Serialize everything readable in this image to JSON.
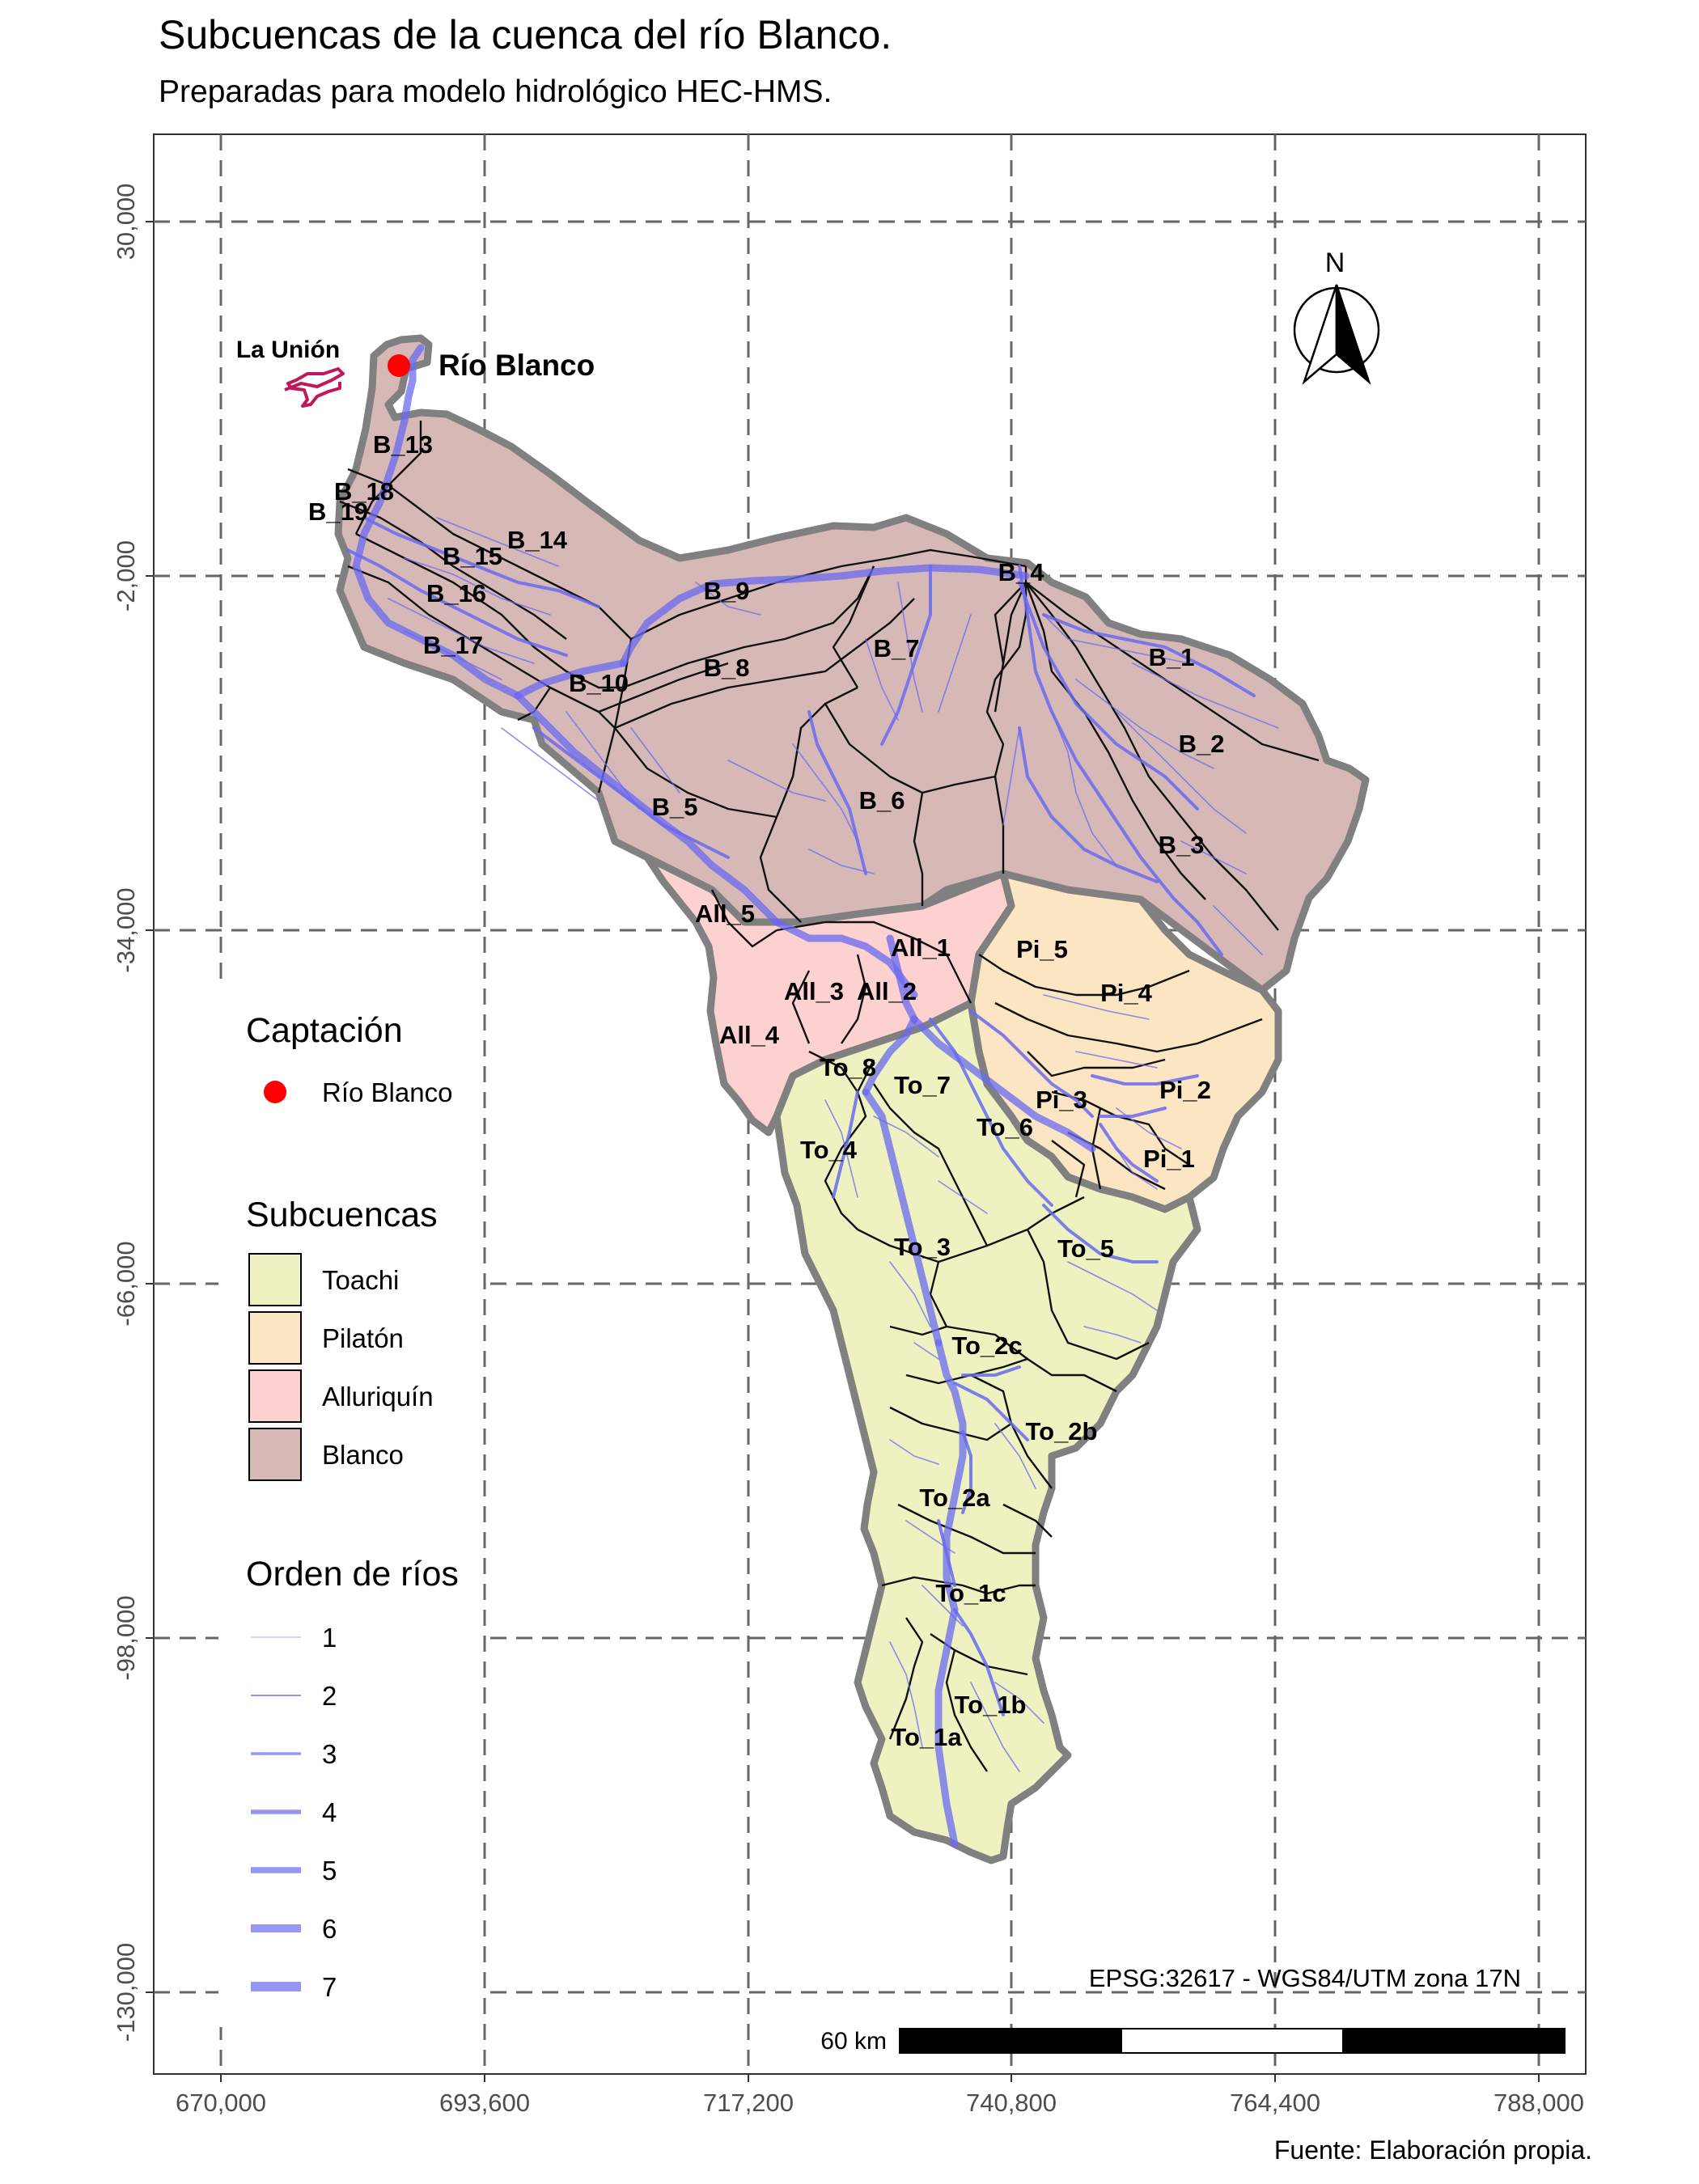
{
  "title": "Subcuencas de la cuenca del río Blanco.",
  "subtitle": "Preparadas para modelo hidrológico HEC-HMS.",
  "caption": "Fuente: Elaboración propia.",
  "colors": {
    "toachi": "#eef2c0",
    "pilaton": "#fbe5c2",
    "alluriquin": "#fcd1d0",
    "blanco": "#d6b9b7",
    "river": "#6a6af0",
    "basin_outline": "#808080",
    "intake": "#ff0000",
    "la_union": "#c2185b"
  },
  "axes": {
    "x_ticks": [
      "670,000",
      "693,600",
      "717,200",
      "740,800",
      "764,400",
      "788,000"
    ],
    "y_ticks": [
      "30,000",
      "-2,000",
      "-34,000",
      "-66,000",
      "-98,000",
      "-130,000"
    ],
    "grid": "dashed"
  },
  "north_arrow": {
    "label": "N"
  },
  "places": {
    "la_union": "La Unión",
    "intake": "Río Blanco"
  },
  "subbasin_labels": [
    {
      "id": "B_1",
      "group": "Blanco"
    },
    {
      "id": "B_2",
      "group": "Blanco"
    },
    {
      "id": "B_3",
      "group": "Blanco"
    },
    {
      "id": "B_4",
      "group": "Blanco"
    },
    {
      "id": "B_5",
      "group": "Blanco"
    },
    {
      "id": "B_6",
      "group": "Blanco"
    },
    {
      "id": "B_7",
      "group": "Blanco"
    },
    {
      "id": "B_8",
      "group": "Blanco"
    },
    {
      "id": "B_9",
      "group": "Blanco"
    },
    {
      "id": "B_10",
      "group": "Blanco"
    },
    {
      "id": "B_13",
      "group": "Blanco"
    },
    {
      "id": "B_14",
      "group": "Blanco"
    },
    {
      "id": "B_15",
      "group": "Blanco"
    },
    {
      "id": "B_16",
      "group": "Blanco"
    },
    {
      "id": "B_17",
      "group": "Blanco"
    },
    {
      "id": "B_18",
      "group": "Blanco"
    },
    {
      "id": "B_19",
      "group": "Blanco"
    },
    {
      "id": "All_1",
      "group": "Alluriquín"
    },
    {
      "id": "All_2",
      "group": "Alluriquín"
    },
    {
      "id": "All_3",
      "group": "Alluriquín"
    },
    {
      "id": "All_4",
      "group": "Alluriquín"
    },
    {
      "id": "All_5",
      "group": "Alluriquín"
    },
    {
      "id": "Pi_1",
      "group": "Pilatón"
    },
    {
      "id": "Pi_2",
      "group": "Pilatón"
    },
    {
      "id": "Pi_3",
      "group": "Pilatón"
    },
    {
      "id": "Pi_4",
      "group": "Pilatón"
    },
    {
      "id": "Pi_5",
      "group": "Pilatón"
    },
    {
      "id": "To_1a",
      "group": "Toachi"
    },
    {
      "id": "To_1b",
      "group": "Toachi"
    },
    {
      "id": "To_1c",
      "group": "Toachi"
    },
    {
      "id": "To_2a",
      "group": "Toachi"
    },
    {
      "id": "To_2b",
      "group": "Toachi"
    },
    {
      "id": "To_2c",
      "group": "Toachi"
    },
    {
      "id": "To_3",
      "group": "Toachi"
    },
    {
      "id": "To_4",
      "group": "Toachi"
    },
    {
      "id": "To_5",
      "group": "Toachi"
    },
    {
      "id": "To_6",
      "group": "Toachi"
    },
    {
      "id": "To_7",
      "group": "Toachi"
    },
    {
      "id": "To_8",
      "group": "Toachi"
    }
  ],
  "legend": {
    "intake": {
      "title": "Captación",
      "label": "Río Blanco"
    },
    "subbasins": {
      "title": "Subcuencas",
      "items": [
        {
          "label": "Toachi",
          "color": "#eef2c0"
        },
        {
          "label": "Pilatón",
          "color": "#fbe5c2"
        },
        {
          "label": "Alluriquín",
          "color": "#fcd1d0"
        },
        {
          "label": "Blanco",
          "color": "#d6b9b7"
        }
      ]
    },
    "rivers": {
      "title": "Orden de ríos",
      "orders": [
        "1",
        "2",
        "3",
        "4",
        "5",
        "6",
        "7"
      ]
    }
  },
  "crs": "EPSG:32617 - WGS84/UTM zona 17N",
  "scale_bar": {
    "label": "60 km"
  }
}
